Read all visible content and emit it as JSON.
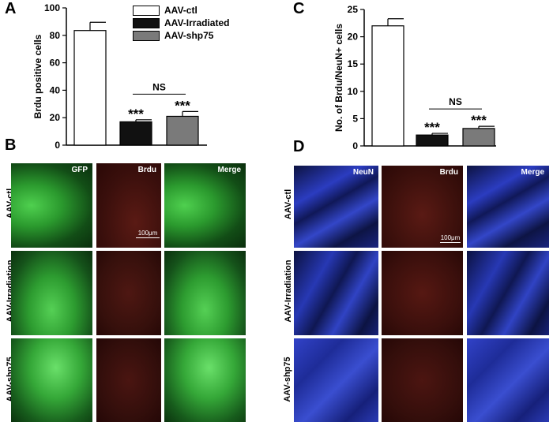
{
  "panels": {
    "A": "A",
    "B": "B",
    "C": "C",
    "D": "D"
  },
  "legend": {
    "items": [
      "AAV-ctl",
      "AAV-Irradiated",
      "AAV-shp75"
    ],
    "colors": [
      "#ffffff",
      "#111111",
      "#7a7a7a"
    ]
  },
  "chart_data": [
    {
      "type": "bar",
      "ylabel": "Brdu positive cells",
      "xlabel": "",
      "categories": [
        "AAV-ctl",
        "AAV-Irradiated",
        "AAV-shp75"
      ],
      "values": [
        83.5,
        17,
        21
      ],
      "errors": [
        6,
        1.5,
        3.5
      ],
      "ylim": [
        0,
        100
      ],
      "yticks": [
        "0",
        "20",
        "40",
        "60",
        "80",
        "100"
      ],
      "bar_colors": [
        "#ffffff",
        "#111111",
        "#7a7a7a"
      ],
      "significance": [
        "",
        "***",
        "***"
      ],
      "comparison": "NS"
    },
    {
      "type": "bar",
      "ylabel": "No. of Brdu/NeuN+ cells",
      "xlabel": "",
      "categories": [
        "AAV-ctl",
        "AAV-Irradiated",
        "AAV-shp75"
      ],
      "values": [
        22,
        2,
        3.2
      ],
      "errors": [
        1.3,
        0.3,
        0.4
      ],
      "ylim": [
        0,
        25
      ],
      "yticks": [
        "0",
        "5",
        "10",
        "15",
        "20",
        "25"
      ],
      "bar_colors": [
        "#ffffff",
        "#111111",
        "#7a7a7a"
      ],
      "significance": [
        "",
        "***",
        "***"
      ],
      "comparison": "NS"
    }
  ],
  "panelB": {
    "columns": [
      "GFP",
      "Brdu",
      "Merge"
    ],
    "rows": [
      "AAV-ctl",
      "AAV-Irradiation",
      "AAV-shp75"
    ],
    "scale_bar": "100μm",
    "channel_colors": [
      "#1a8f2a",
      "#5a1410",
      "#1a8f2a"
    ]
  },
  "panelD": {
    "columns": [
      "NeuN",
      "Brdu",
      "Merge"
    ],
    "rows": [
      "AAV-ctl",
      "AAV-Irradiation",
      "AAV-shp75"
    ],
    "scale_bar": "100μm",
    "channel_colors": [
      "#2a3aa8",
      "#5a1410",
      "#2a3aa8"
    ]
  }
}
